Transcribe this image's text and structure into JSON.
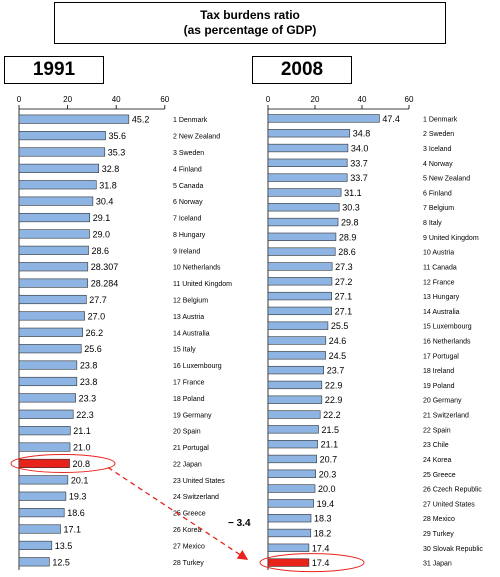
{
  "title": {
    "line1": "Tax burdens ratio",
    "line2": "(as percentage of GDP)"
  },
  "colors": {
    "bar": "#8db4e2",
    "bar_highlight": "#e8231c",
    "arrow": "#e8231c"
  },
  "annotation": {
    "change_label": "− 3.4"
  },
  "chart_data": [
    {
      "type": "bar",
      "orientation": "horizontal",
      "panel_label": "1991",
      "xlim": [
        0,
        60
      ],
      "xticks": [
        0,
        20,
        40,
        60
      ],
      "highlight": "22 Japan",
      "categories": [
        "1 Denmark",
        "2 New Zealand",
        "3 Sweden",
        "4 Finland",
        "5 Canada",
        "6 Norway",
        "7 Iceland",
        "8 Hungary",
        "9 Ireland",
        "10 Netherlands",
        "11 United Kingdom",
        "12 Belgium",
        "13 Austria",
        "14 Australia",
        "15 Italy",
        "16 Luxembourg",
        "17 France",
        "18 Poland",
        "19 Germany",
        "20 Spain",
        "21 Portugal",
        "22 Japan",
        "23 United States",
        "24 Switzerland",
        "25 Greece",
        "26 Korea",
        "27 Mexico",
        "28 Turkey"
      ],
      "values": [
        45.2,
        35.6,
        35.3,
        32.8,
        31.8,
        30.4,
        29.1,
        29.0,
        28.6,
        28.307,
        28.284,
        27.7,
        27.0,
        26.2,
        25.6,
        23.8,
        23.8,
        23.3,
        22.3,
        21.1,
        21.0,
        20.8,
        20.1,
        19.3,
        18.6,
        17.1,
        13.5,
        12.5
      ],
      "value_labels": [
        "45.2",
        "35.6",
        "35.3",
        "32.8",
        "31.8",
        "30.4",
        "29.1",
        "29.0",
        "28.6",
        "28.307",
        "28.284",
        "27.7",
        "27.0",
        "26.2",
        "25.6",
        "23.8",
        "23.8",
        "23.3",
        "22.3",
        "21.1",
        "21.0",
        "20.8",
        "20.1",
        "19.3",
        "18.6",
        "17.1",
        "13.5",
        "12.5"
      ]
    },
    {
      "type": "bar",
      "orientation": "horizontal",
      "panel_label": "2008",
      "xlim": [
        0,
        60
      ],
      "xticks": [
        0,
        20,
        40,
        60
      ],
      "highlight": "31 Japan",
      "categories": [
        "1 Denmark",
        "2 Sweden",
        "3 Iceland",
        "4 Norway",
        "5 New Zealand",
        "6 Finland",
        "7 Belgium",
        "8 Italy",
        "9 United Kingdom",
        "10 Austria",
        "11 Canada",
        "12 France",
        "13 Hungary",
        "14 Australia",
        "15 Luxembourg",
        "16 Netherlands",
        "17 Portugal",
        "18 Ireland",
        "19 Poland",
        "20 Germany",
        "21 Switzerland",
        "22 Spain",
        "23 Chile",
        "24 Korea",
        "25 Greece",
        "26 Czech Republic",
        "27 United States",
        "28 Mexico",
        "29 Turkey",
        "30 Slovak Republic",
        "31 Japan"
      ],
      "values": [
        47.4,
        34.8,
        34.0,
        33.7,
        33.7,
        31.1,
        30.3,
        29.8,
        28.9,
        28.6,
        27.3,
        27.2,
        27.1,
        27.1,
        25.5,
        24.6,
        24.5,
        23.7,
        22.9,
        22.9,
        22.2,
        21.5,
        21.1,
        20.7,
        20.3,
        20.0,
        19.4,
        18.3,
        18.2,
        17.4,
        17.4
      ],
      "value_labels": [
        "47.4",
        "34.8",
        "34.0",
        "33.7",
        "33.7",
        "31.1",
        "30.3",
        "29.8",
        "28.9",
        "28.6",
        "27.3",
        "27.2",
        "27.1",
        "27.1",
        "25.5",
        "24.6",
        "24.5",
        "23.7",
        "22.9",
        "22.9",
        "22.2",
        "21.5",
        "21.1",
        "20.7",
        "20.3",
        "20.0",
        "19.4",
        "18.3",
        "18.2",
        "17.4",
        "17.4"
      ]
    }
  ]
}
